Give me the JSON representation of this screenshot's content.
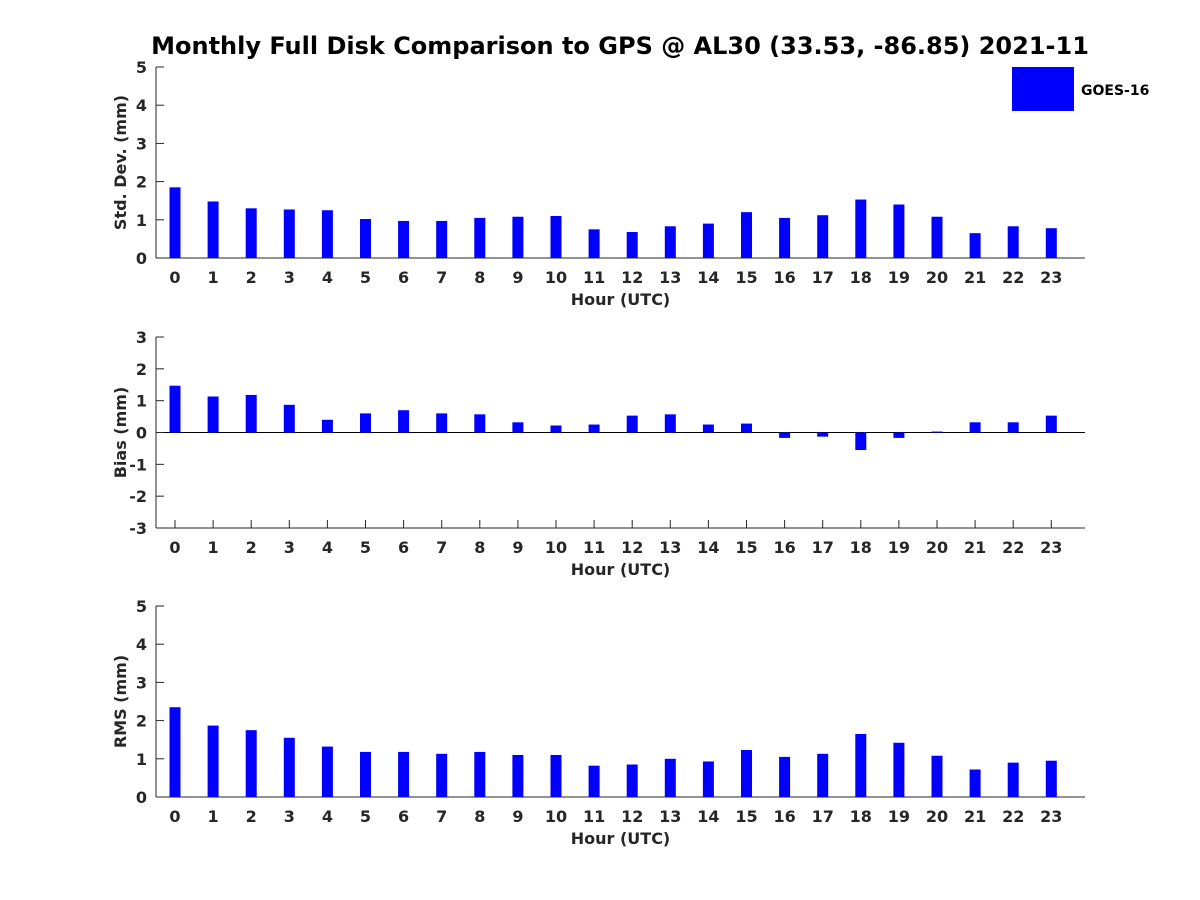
{
  "title": "Monthly Full Disk Comparison to GPS @ AL30 (33.53, -86.85) 2021-11",
  "legend": {
    "label": "GOES-16",
    "color": "#0000ff",
    "position": "top-right"
  },
  "chart_data": [
    {
      "type": "bar",
      "xlabel": "Hour (UTC)",
      "ylabel": "Std. Dev. (mm)",
      "ylim": [
        0,
        5
      ],
      "yticks": [
        "0",
        "1",
        "2",
        "3",
        "4",
        "5"
      ],
      "categories": [
        "0",
        "1",
        "2",
        "3",
        "4",
        "5",
        "6",
        "7",
        "8",
        "9",
        "10",
        "11",
        "12",
        "13",
        "14",
        "15",
        "16",
        "17",
        "18",
        "19",
        "20",
        "21",
        "22",
        "23"
      ],
      "series": [
        {
          "name": "GOES-16",
          "color": "#0000ff",
          "values": [
            1.85,
            1.48,
            1.3,
            1.27,
            1.25,
            1.02,
            0.97,
            0.97,
            1.05,
            1.08,
            1.1,
            0.75,
            0.68,
            0.83,
            0.9,
            1.2,
            1.05,
            1.12,
            1.53,
            1.4,
            1.08,
            0.65,
            0.83,
            0.78
          ]
        }
      ]
    },
    {
      "type": "bar",
      "xlabel": "Hour (UTC)",
      "ylabel": "Bias (mm)",
      "ylim": [
        -3,
        3
      ],
      "yticks": [
        "-3",
        "-2",
        "-1",
        "0",
        "1",
        "2",
        "3"
      ],
      "categories": [
        "0",
        "1",
        "2",
        "3",
        "4",
        "5",
        "6",
        "7",
        "8",
        "9",
        "10",
        "11",
        "12",
        "13",
        "14",
        "15",
        "16",
        "17",
        "18",
        "19",
        "20",
        "21",
        "22",
        "23"
      ],
      "series": [
        {
          "name": "GOES-16",
          "color": "#0000ff",
          "values": [
            1.47,
            1.13,
            1.18,
            0.87,
            0.4,
            0.6,
            0.7,
            0.6,
            0.57,
            0.32,
            0.22,
            0.25,
            0.53,
            0.57,
            0.25,
            0.28,
            -0.17,
            -0.13,
            -0.55,
            -0.17,
            0.03,
            0.32,
            0.32,
            0.53
          ]
        }
      ]
    },
    {
      "type": "bar",
      "xlabel": "Hour (UTC)",
      "ylabel": "RMS (mm)",
      "ylim": [
        0,
        5
      ],
      "yticks": [
        "0",
        "1",
        "2",
        "3",
        "4",
        "5"
      ],
      "categories": [
        "0",
        "1",
        "2",
        "3",
        "4",
        "5",
        "6",
        "7",
        "8",
        "9",
        "10",
        "11",
        "12",
        "13",
        "14",
        "15",
        "16",
        "17",
        "18",
        "19",
        "20",
        "21",
        "22",
        "23"
      ],
      "series": [
        {
          "name": "GOES-16",
          "color": "#0000ff",
          "values": [
            2.35,
            1.87,
            1.75,
            1.55,
            1.32,
            1.18,
            1.18,
            1.13,
            1.18,
            1.1,
            1.1,
            0.82,
            0.85,
            1.0,
            0.93,
            1.23,
            1.05,
            1.13,
            1.65,
            1.42,
            1.08,
            0.72,
            0.9,
            0.95
          ]
        }
      ]
    }
  ]
}
